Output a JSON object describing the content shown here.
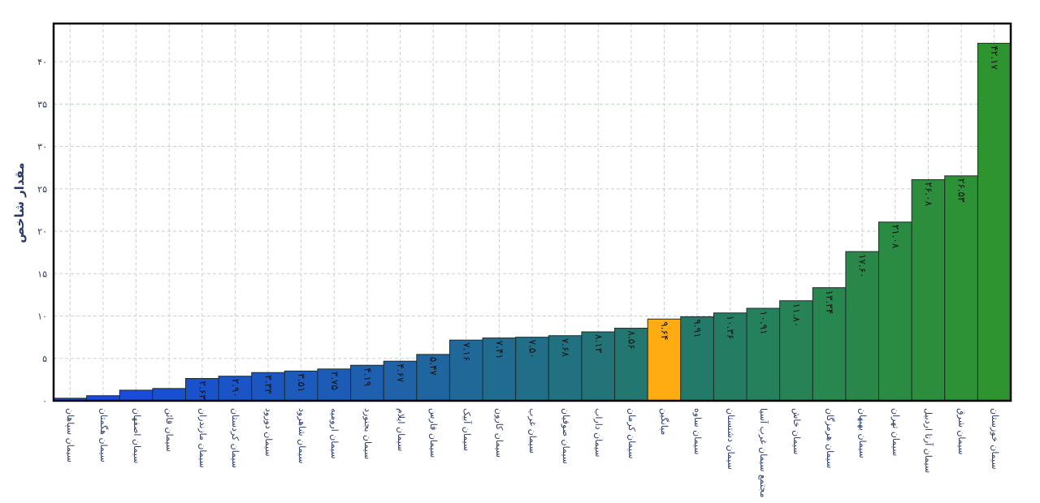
{
  "chart_data": {
    "type": "bar",
    "title": "",
    "xlabel": "",
    "ylabel": "مقدار شاخص",
    "ylim": [
      0,
      44.5
    ],
    "yticks": [
      0,
      5,
      10,
      15,
      20,
      25,
      30,
      35,
      40
    ],
    "ytick_labels": [
      "۰",
      "۵",
      "۱۰",
      "۱۵",
      "۲۰",
      "۲۵",
      "۳۰",
      "۳۵",
      "۴۰"
    ],
    "grid": true,
    "categories": [
      "سیمان سپاهان",
      "سیمان هگمتان",
      "سیمان اصفهان",
      "سیمان قائن",
      "سیمان مازندران",
      "سیمان کردستان",
      "سیمان دورود",
      "سیمان شاهرود",
      "سیمان ارومیه",
      "سیمان بجنورد",
      "سیمان ایلام",
      "سیمان فارس",
      "سیمان آبیک",
      "سیمان کارون",
      "سیمان غرب",
      "سیمان صوفیان",
      "سیمان داراب",
      "سیمان کرمان",
      "میانگین",
      "سیمان ساوه",
      "سیمان دشتستان",
      "مجتمع سیمان غرب آسیا",
      "سیمان خاش",
      "سیمان هرمزگان",
      "سیمان بهبهان",
      "سیمان تهران",
      "سیمان آرتا اردبیل",
      "سیمان شرق",
      "سیمان خوزستان"
    ],
    "values": [
      0.3,
      0.6,
      1.25,
      1.45,
      2.63,
      2.9,
      3.33,
      3.51,
      3.75,
      4.19,
      4.67,
      5.47,
      7.16,
      7.41,
      7.5,
      7.68,
      8.13,
      8.56,
      9.64,
      9.91,
      10.36,
      10.91,
      11.8,
      13.34,
      17.6,
      21.08,
      26.08,
      26.53,
      42.17
    ],
    "data_labels": [
      "",
      "",
      "",
      "",
      "۲.۶۳",
      "۲.۹۰",
      "۳.۳۳",
      "۳.۵۱",
      "۳.۷۵",
      "۴.۱۹",
      "۴.۶۷",
      "۵.۴۷",
      "۷.۱۶",
      "۷.۴۱",
      "۷.۵۰",
      "۷.۶۸",
      "۸.۱۳",
      "۸.۵۶",
      "۹.۶۴",
      "۹.۹۱",
      "۱۰.۳۶",
      "۱۰.۹۱",
      "۱۱.۸۰",
      "۱۳.۳۴",
      "۱۷.۶۰",
      "۲۱.۰۸",
      "۲۶.۰۸",
      "۲۶.۵۳",
      "۴۲.۱۷"
    ],
    "highlight_category": "میانگین",
    "colors": {
      "scale": [
        "#1747e3",
        "#1e5fb0",
        "#237a68",
        "#2e9430"
      ],
      "highlight": "#ffab12",
      "label_text": "#2a3a6a"
    }
  }
}
